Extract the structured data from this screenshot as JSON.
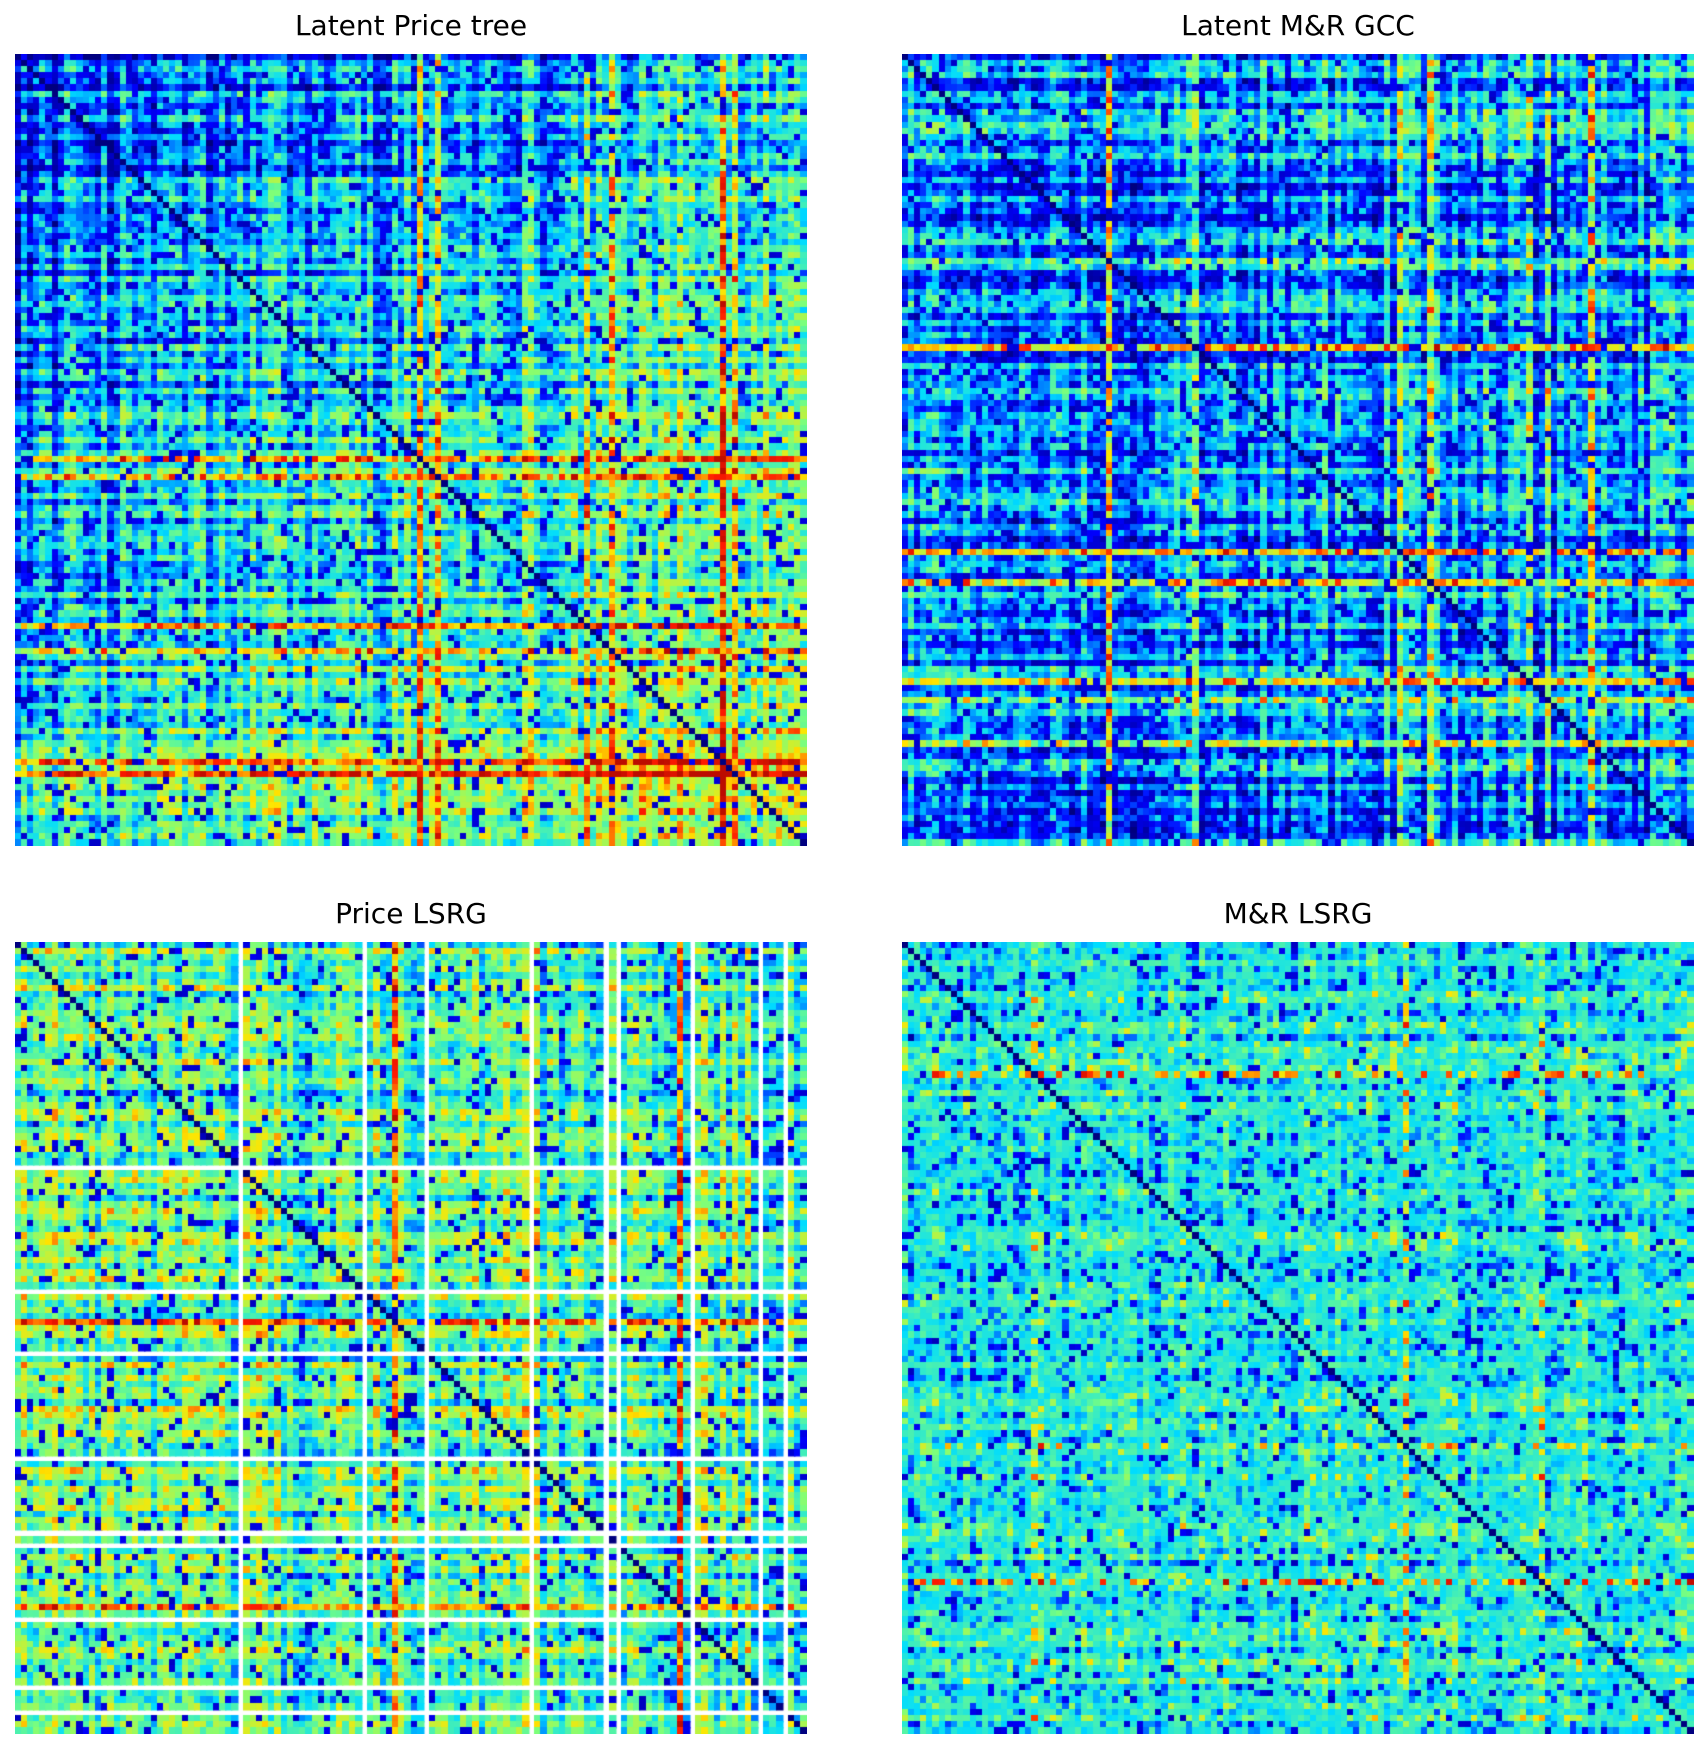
{
  "figure": {
    "background": "#ffffff",
    "colormap": "jet",
    "colormap_stops": [
      "#00007f",
      "#0000ff",
      "#00dcff",
      "#7dff7a",
      "#ffe500",
      "#ff1a00",
      "#7f0000"
    ]
  },
  "chart_data": [
    {
      "type": "heatmap",
      "title": "Latent Price tree",
      "matrix_size": 128,
      "value_range": [
        0,
        1
      ],
      "diagonal_value": 0,
      "block_structure": "gradient: low values (blue) concentrated toward top-left, higher values (yellow/red) toward bottom-right",
      "hot_rows": [
        65,
        68,
        92,
        96,
        114,
        116
      ],
      "empty_rows": [],
      "grid": false,
      "legend": "none"
    },
    {
      "type": "heatmap",
      "title": "Latent M&R GCC",
      "matrix_size": 128,
      "value_range": [
        0,
        1
      ],
      "diagonal_value": 0,
      "block_structure": "mixed blue/cyan with scattered yellow/red row and column bands",
      "hot_rows": [
        33,
        47,
        80,
        85,
        101,
        104,
        111
      ],
      "empty_rows": [],
      "grid": false,
      "legend": "none"
    },
    {
      "type": "heatmap",
      "title": "Price LSRG",
      "matrix_size": 128,
      "value_range": [
        0,
        1
      ],
      "diagonal_value": 0,
      "block_structure": "cyan/green/yellow cells with white gaps for missing rows and columns",
      "hot_rows": [
        61,
        107
      ],
      "empty_rows": [
        36,
        56,
        66,
        83,
        95,
        97,
        109,
        120,
        124
      ],
      "grid": false,
      "legend": "none"
    },
    {
      "type": "heatmap",
      "title": "M&R LSRG",
      "matrix_size": 128,
      "value_range": [
        0,
        1
      ],
      "diagonal_value": 0,
      "block_structure": "predominantly cyan/green with scattered blue cells and a few yellow bands",
      "hot_rows": [
        21,
        81,
        103
      ],
      "empty_rows": [],
      "grid": false,
      "legend": "none"
    }
  ]
}
